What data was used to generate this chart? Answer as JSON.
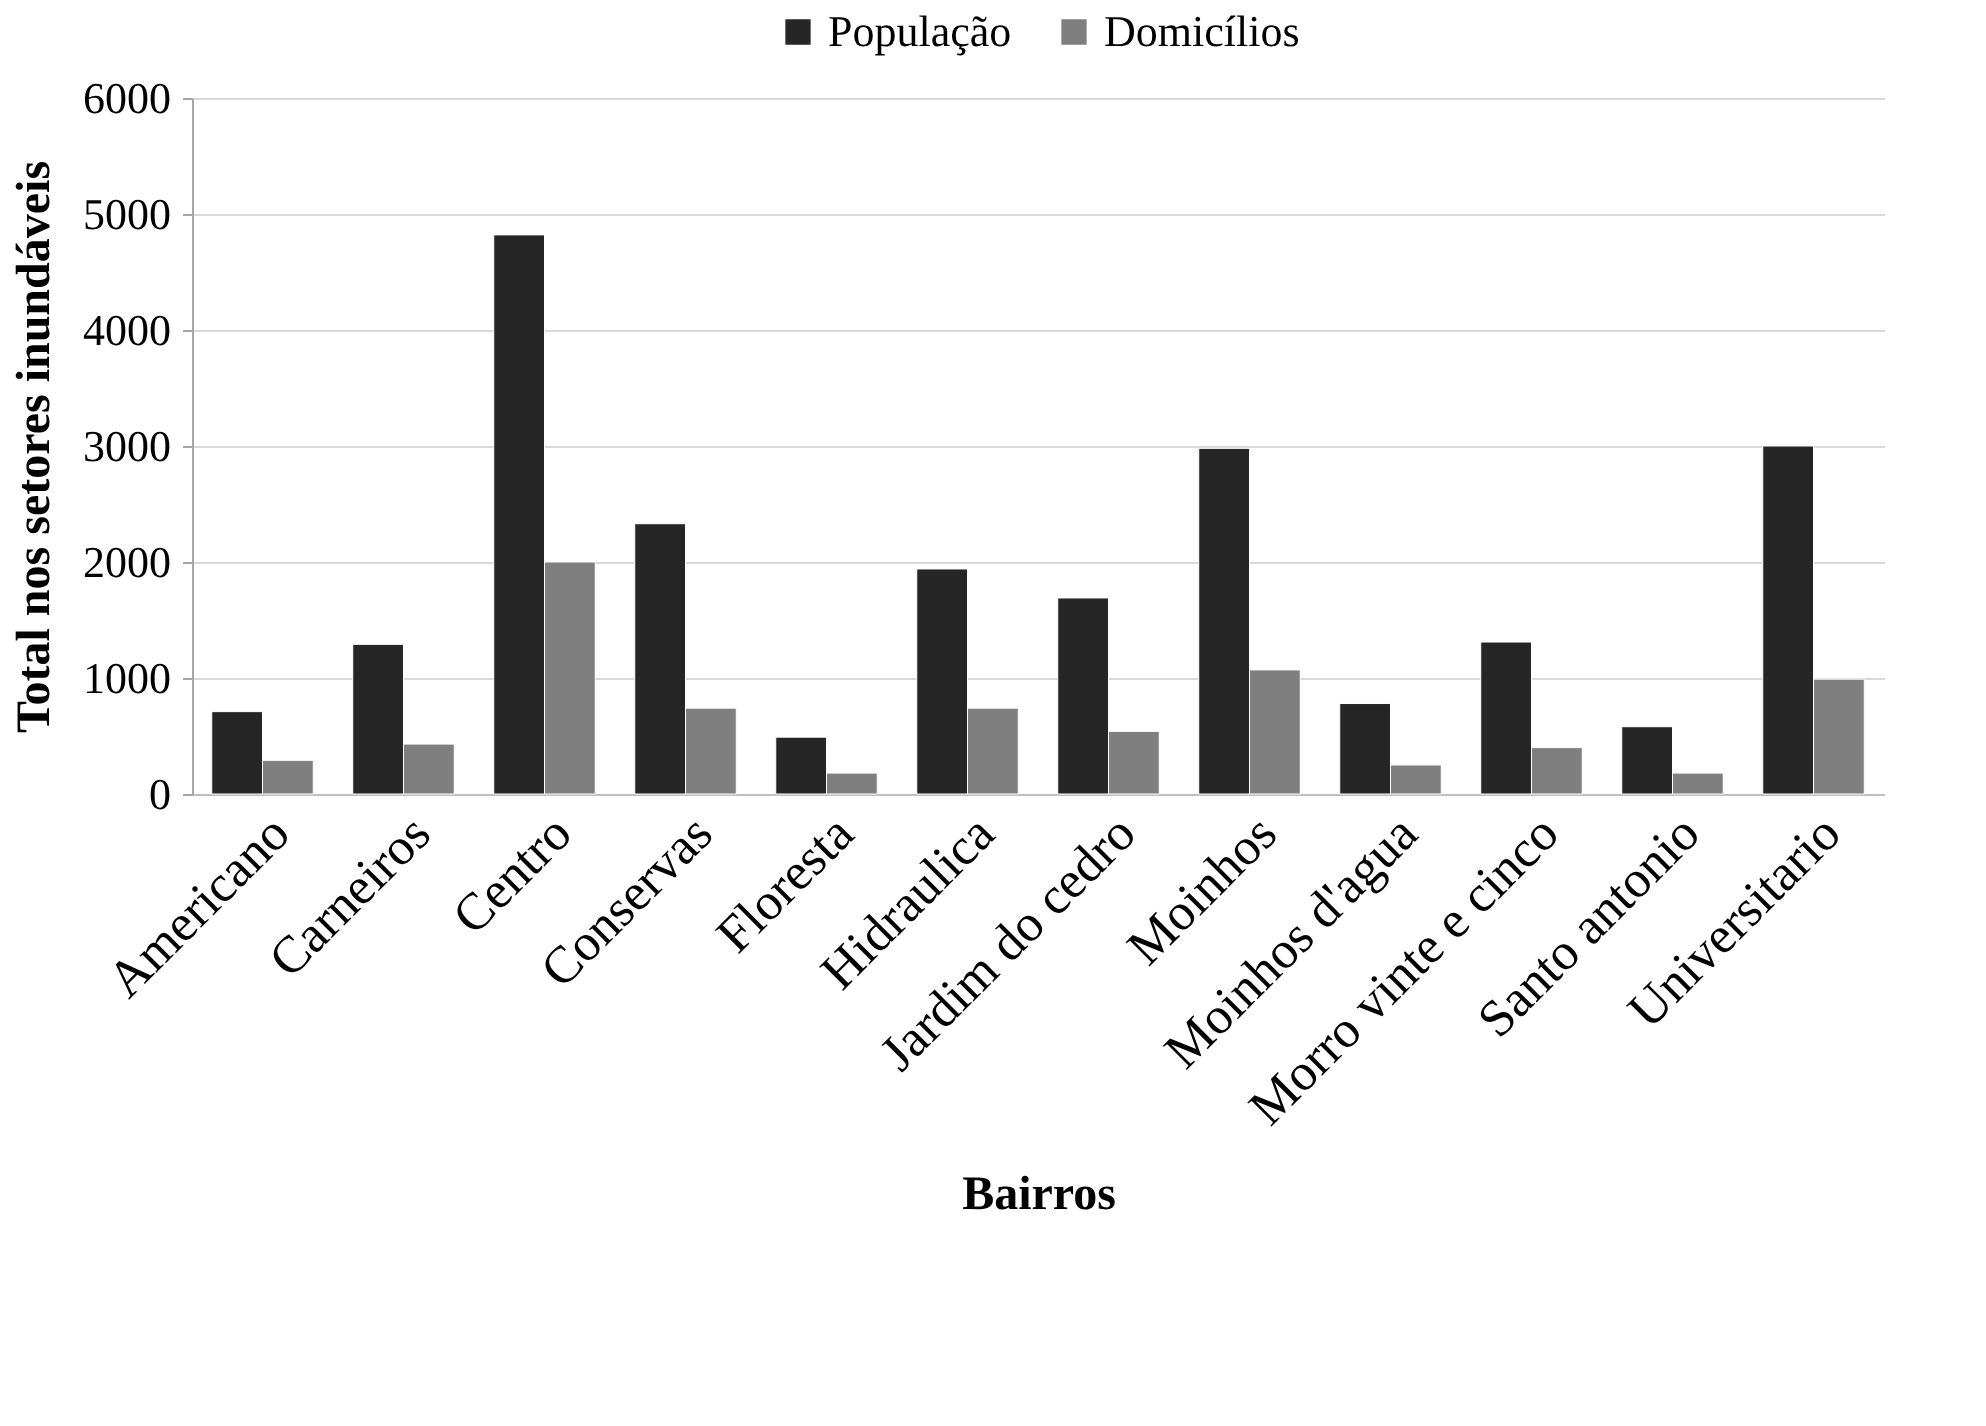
{
  "chart_data": {
    "type": "bar",
    "xlabel": "Bairros",
    "ylabel": "Total nos setores inundáveis",
    "categories": [
      "Americano",
      "Carneiros",
      "Centro",
      "Conservas",
      "Floresta",
      "Hidraulica",
      "Jardim do cedro",
      "Moinhos",
      "Moinhos d'agua",
      "Morro vinte e cinco",
      "Santo antonio",
      "Universitario"
    ],
    "series": [
      {
        "name": "População",
        "color": "#262626",
        "values": [
          710,
          1290,
          4820,
          2330,
          490,
          1940,
          1690,
          2980,
          780,
          1310,
          580,
          3000
        ]
      },
      {
        "name": "Domicílios",
        "color": "#7f7f7f",
        "values": [
          290,
          430,
          2000,
          740,
          180,
          740,
          540,
          1070,
          250,
          400,
          180,
          990
        ]
      }
    ],
    "ylim": [
      0,
      6000
    ],
    "yticks": [
      0,
      1000,
      2000,
      3000,
      4000,
      5000,
      6000
    ],
    "grid": "y",
    "legend": "top"
  }
}
